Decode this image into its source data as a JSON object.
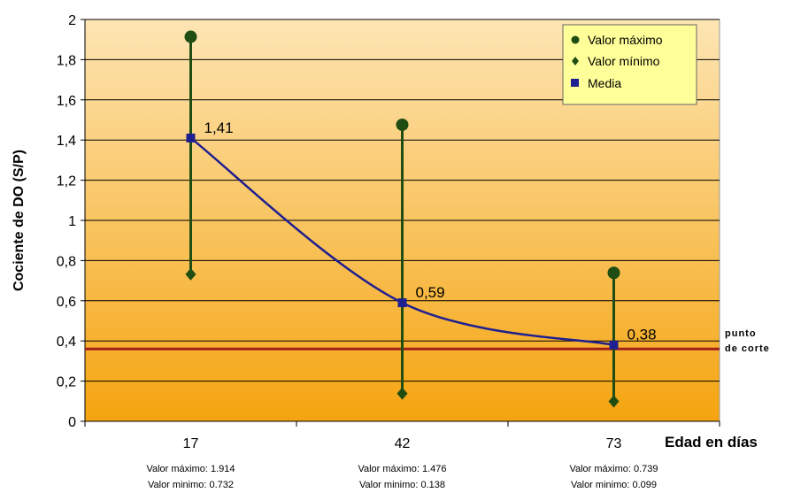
{
  "chart_data": {
    "type": "line",
    "categories": [
      "17",
      "42",
      "73"
    ],
    "xlabel": "Edad en días",
    "ylabel": "Cociente de DO (S/P)",
    "ylim": [
      0,
      2
    ],
    "yticks": [
      "0",
      "0,2",
      "0,4",
      "0,6",
      "0,8",
      "1",
      "1,2",
      "1,4",
      "1,6",
      "1,8",
      "2"
    ],
    "grid": true,
    "legend_position": "top-right",
    "series": [
      {
        "name": "Valor máximo",
        "values": [
          1.914,
          1.476,
          0.739
        ],
        "marker": "circle",
        "color": "#1f4d12"
      },
      {
        "name": "Valor mínimo",
        "values": [
          0.732,
          0.138,
          0.099
        ],
        "marker": "diamond",
        "color": "#1f4d12"
      },
      {
        "name": "Media",
        "values": [
          1.41,
          0.59,
          0.38
        ],
        "marker": "square",
        "color": "#1f1f8f"
      }
    ],
    "data_labels": [
      "1,41",
      "0,59",
      "0,38"
    ],
    "reference_line": {
      "value": 0.36,
      "label_line1": "punto",
      "label_line2": "de corte",
      "color": "#a0201a"
    },
    "notes": [
      {
        "max": "Valor máximo: 1.914",
        "min": "Valor minimo: 0.732"
      },
      {
        "max": "Valor máximo: 1.476",
        "min": "Valor minimo:  0.138"
      },
      {
        "max": "Valor máximo: 0.739",
        "min": "Valor minimo: 0.099"
      }
    ]
  }
}
